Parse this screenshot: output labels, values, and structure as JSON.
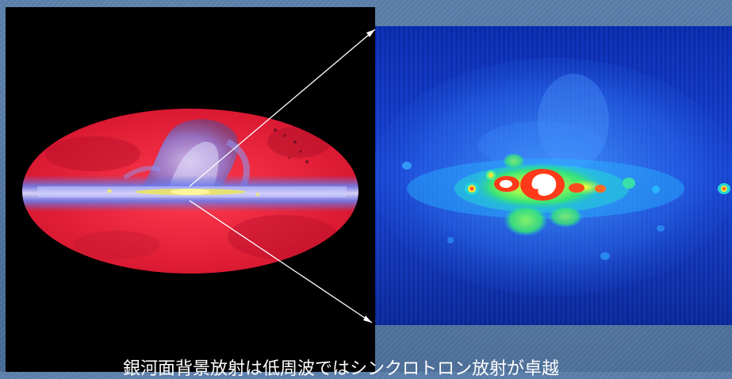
{
  "caption": "銀河面背景放射は低周波ではシンクロトロン放射が卓越"
}
